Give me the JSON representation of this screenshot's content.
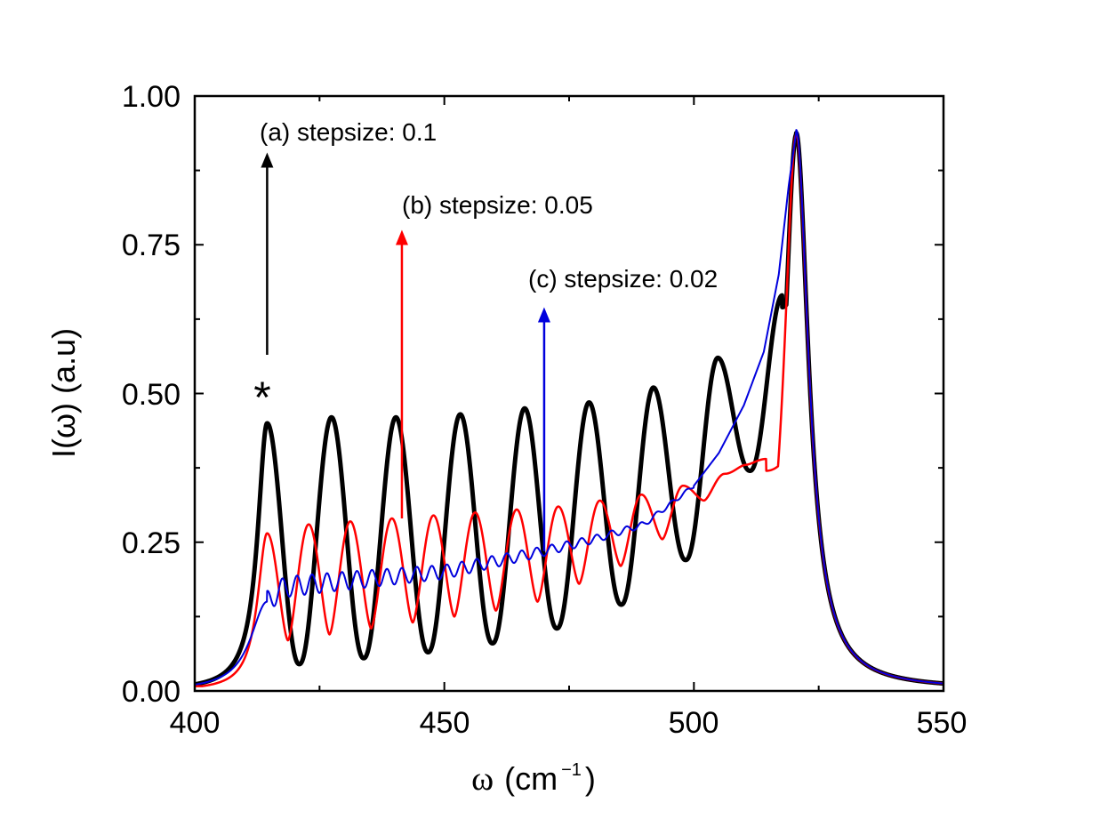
{
  "chart_data": {
    "type": "line",
    "xlabel": "ω (cm⁻¹)",
    "xlabel_parts": {
      "symbol": "ω",
      "open": "(cm",
      "sup": "−1",
      "close": ")"
    },
    "ylabel": "I(ω) (a.u)",
    "xlim": [
      400,
      550
    ],
    "ylim": [
      0,
      1
    ],
    "x_ticks": [
      "400",
      "450",
      "500",
      "550"
    ],
    "y_ticks": [
      "0.00",
      "0.25",
      "0.50",
      "0.75",
      "1.00"
    ],
    "x_tick_values": [
      400,
      450,
      500,
      550
    ],
    "y_tick_values": [
      0,
      0.25,
      0.5,
      0.75,
      1.0
    ],
    "grid": false,
    "series": [
      {
        "name": "(a) stepsize: 0.1",
        "color": "#000000",
        "model": {
          "main_peak_center": 520.5,
          "main_peak_height": 0.935,
          "main_peak_hwhm_left": 3.0,
          "main_peak_hwhm_right": 3.0,
          "min_floor": 0.006,
          "fringe_start": 414.5,
          "fringe_end": 517.7,
          "fringe_count": 9,
          "fringe_peaks": [
            0.45,
            0.46,
            0.46,
            0.465,
            0.475,
            0.485,
            0.51,
            0.56,
            0.665
          ],
          "fringe_valleys": [
            0.045,
            0.055,
            0.065,
            0.08,
            0.105,
            0.145,
            0.22,
            0.37
          ],
          "fringe_sharpness": 2.2
        }
      },
      {
        "name": "(b) stepsize: 0.05",
        "color": "#ff0000",
        "model": {
          "main_peak_center": 520.5,
          "main_peak_height": 0.935,
          "main_peak_hwhm_left": 3.0,
          "main_peak_hwhm_right": 3.0,
          "min_floor": 0.006,
          "fringe_start": 414.5,
          "fringe_end": 514.5,
          "fringe_count": 13,
          "fringe_peaks": [
            0.265,
            0.28,
            0.285,
            0.29,
            0.295,
            0.3,
            0.305,
            0.31,
            0.32,
            0.33,
            0.345,
            0.365,
            0.39
          ],
          "fringe_valleys": [
            0.085,
            0.095,
            0.105,
            0.115,
            0.125,
            0.135,
            0.15,
            0.18,
            0.21,
            0.255,
            0.32,
            0.38
          ],
          "fringe_sharpness": 1.6
        }
      },
      {
        "name": "(c) stepsize: 0.02",
        "color": "#0000dd",
        "model": {
          "main_peak_center": 520.5,
          "main_peak_height": 0.94,
          "main_peak_hwhm_left": 3.0,
          "main_peak_hwhm_right": 3.0,
          "min_floor": 0.006,
          "ripple_start": 414.5,
          "ripple_period": 3.0,
          "baseline": [
            [
              414.5,
              0.15
            ],
            [
              418,
              0.175
            ],
            [
              430,
              0.185
            ],
            [
              450,
              0.2
            ],
            [
              470,
              0.235
            ],
            [
              480,
              0.255
            ],
            [
              490,
              0.28
            ],
            [
              500,
              0.345
            ],
            [
              505,
              0.4
            ],
            [
              510,
              0.48
            ],
            [
              514,
              0.57
            ],
            [
              517,
              0.7
            ],
            [
              519,
              0.85
            ],
            [
              520.5,
              0.94
            ]
          ],
          "ripple_amp_start": 0.018,
          "ripple_amp_end": 0.003,
          "ripple_end": 500
        }
      }
    ],
    "annotations": [
      {
        "text": "(a) stepsize: 0.1",
        "series": 0,
        "arrow_x": 414.5,
        "arrow_from": 0.565,
        "arrow_to": 0.905
      },
      {
        "text": "(b) stepsize: 0.05",
        "series": 1,
        "arrow_x": 441.5,
        "arrow_from": 0.29,
        "arrow_to": 0.775
      },
      {
        "text": "(c) stepsize: 0.02",
        "series": 2,
        "arrow_x": 470,
        "arrow_from": 0.235,
        "arrow_to": 0.645
      }
    ],
    "marker": {
      "text": "*",
      "x": 414.5,
      "y": 0.5
    }
  }
}
